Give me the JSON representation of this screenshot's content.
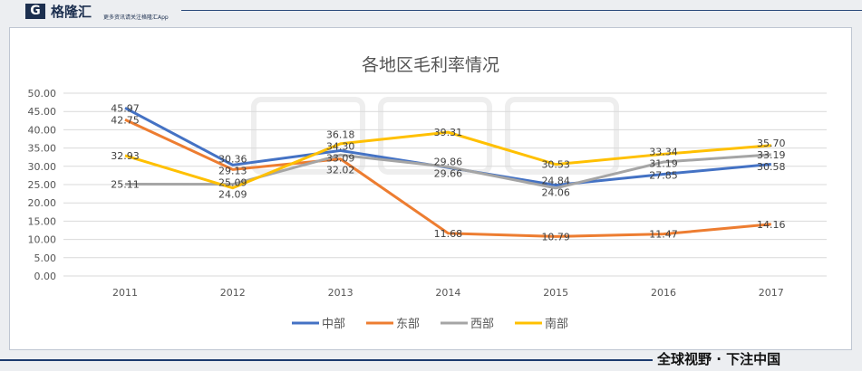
{
  "header": {
    "logo_letter": "G",
    "brand": "格隆汇",
    "slogan": "更多资讯请关注格隆汇App"
  },
  "footer": {
    "slogan": "全球视野 · 下注中国"
  },
  "watermark": {
    "text": "格隆汇",
    "url": "www.gelonghui.com"
  },
  "chart_data": {
    "type": "line",
    "title": "各地区毛利率情况",
    "categories": [
      "2011",
      "2012",
      "2013",
      "2014",
      "2015",
      "2016",
      "2017"
    ],
    "ylim": [
      0,
      50
    ],
    "yticks": [
      "0.00",
      "5.00",
      "10.00",
      "15.00",
      "20.00",
      "25.00",
      "30.00",
      "35.00",
      "40.00",
      "45.00",
      "50.00"
    ],
    "grid": true,
    "legend": "bottom",
    "series": [
      {
        "name": "中部",
        "color": "#4472c4",
        "values": [
          45.97,
          30.36,
          34.3,
          29.66,
          24.84,
          27.85,
          30.58
        ]
      },
      {
        "name": "东部",
        "color": "#ed7d31",
        "values": [
          42.75,
          29.13,
          32.02,
          11.68,
          10.79,
          11.47,
          14.16
        ]
      },
      {
        "name": "西部",
        "color": "#a5a5a5",
        "values": [
          25.11,
          25.09,
          33.09,
          29.86,
          24.06,
          31.19,
          33.19
        ]
      },
      {
        "name": "南部",
        "color": "#ffc000",
        "values": [
          32.93,
          24.09,
          36.18,
          39.31,
          30.53,
          33.34,
          35.7
        ]
      }
    ]
  }
}
